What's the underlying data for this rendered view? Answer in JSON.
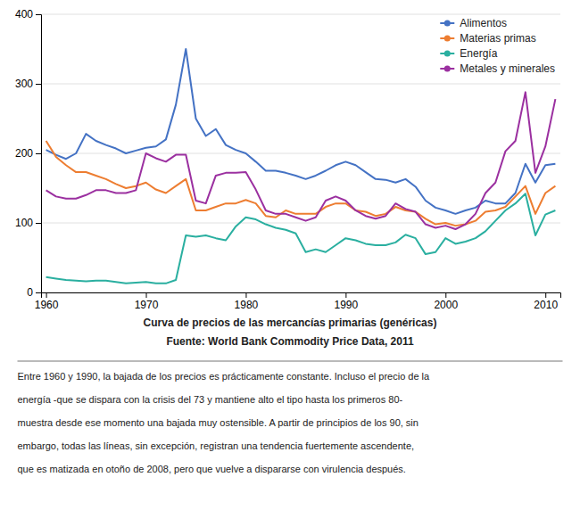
{
  "chart_data": {
    "type": "line",
    "title": "Curva de precios de las mercancías primarias (genéricas)",
    "subtitle": "Fuente: World Bank Commodity Price Data, 2011",
    "annotations": [
      "Entre 1960 y 1990, la bajada de los precios es prácticamente constante. Incluso el precio de la",
      "energía -que se dispara con la crisis del 73 y mantiene alto el tipo hasta los primeros 80-",
      "muestra desde ese momento una bajada muy ostensible. A partir de principios de los 90, sin",
      "embargo, todas las líneas, sin excepción, registran una tendencia fuertemente ascendente,",
      "que es matizada en otoño de 2008, pero que vuelve a dispararse con virulencia después."
    ],
    "x": [
      1960,
      1961,
      1962,
      1963,
      1964,
      1965,
      1966,
      1967,
      1968,
      1969,
      1970,
      1971,
      1972,
      1973,
      1974,
      1975,
      1976,
      1977,
      1978,
      1979,
      1980,
      1981,
      1982,
      1983,
      1984,
      1985,
      1986,
      1987,
      1988,
      1989,
      1990,
      1991,
      1992,
      1993,
      1994,
      1995,
      1996,
      1997,
      1998,
      1999,
      2000,
      2001,
      2002,
      2003,
      2004,
      2005,
      2006,
      2007,
      2008,
      2009,
      2010,
      2011
    ],
    "series": [
      {
        "name": "Alimentos",
        "color": "#4472C4",
        "values": [
          205,
          198,
          192,
          200,
          228,
          218,
          212,
          207,
          200,
          204,
          208,
          210,
          220,
          270,
          350,
          250,
          225,
          235,
          212,
          205,
          200,
          188,
          175,
          175,
          172,
          168,
          163,
          168,
          175,
          183,
          188,
          183,
          173,
          163,
          162,
          158,
          163,
          152,
          132,
          122,
          118,
          113,
          118,
          122,
          132,
          128,
          128,
          143,
          185,
          158,
          183,
          185
        ]
      },
      {
        "name": "Materias primas",
        "color": "#ED7D31",
        "values": [
          218,
          195,
          183,
          173,
          173,
          168,
          163,
          156,
          150,
          153,
          158,
          148,
          143,
          153,
          163,
          118,
          118,
          123,
          128,
          128,
          133,
          128,
          110,
          108,
          118,
          113,
          113,
          113,
          123,
          128,
          128,
          118,
          116,
          110,
          113,
          123,
          118,
          116,
          106,
          98,
          100,
          96,
          98,
          103,
          116,
          118,
          123,
          138,
          153,
          113,
          143,
          153
        ]
      },
      {
        "name": "Energía",
        "color": "#2AAFA0",
        "values": [
          22,
          20,
          18,
          17,
          16,
          17,
          17,
          15,
          13,
          14,
          15,
          13,
          13,
          18,
          82,
          80,
          82,
          78,
          75,
          95,
          108,
          105,
          98,
          93,
          90,
          85,
          58,
          62,
          58,
          68,
          78,
          75,
          70,
          68,
          68,
          72,
          83,
          78,
          55,
          58,
          78,
          70,
          73,
          78,
          88,
          103,
          118,
          128,
          142,
          82,
          112,
          118
        ]
      },
      {
        "name": "Metales y minerales",
        "color": "#9B30A0",
        "values": [
          147,
          138,
          135,
          135,
          140,
          147,
          147,
          143,
          143,
          147,
          200,
          193,
          188,
          198,
          198,
          132,
          128,
          168,
          172,
          172,
          173,
          148,
          118,
          113,
          113,
          108,
          103,
          108,
          132,
          138,
          132,
          118,
          110,
          106,
          110,
          128,
          120,
          116,
          98,
          93,
          96,
          91,
          98,
          113,
          143,
          158,
          203,
          218,
          288,
          172,
          210,
          278
        ]
      }
    ],
    "xlim": [
      1959.5,
      2011.5
    ],
    "xticks": [
      1960,
      1970,
      1980,
      1990,
      2000,
      2010
    ],
    "ylim": [
      0,
      400
    ],
    "yticks": [
      0,
      100,
      200,
      300,
      400
    ],
    "grid": true,
    "legend": "upper right"
  }
}
